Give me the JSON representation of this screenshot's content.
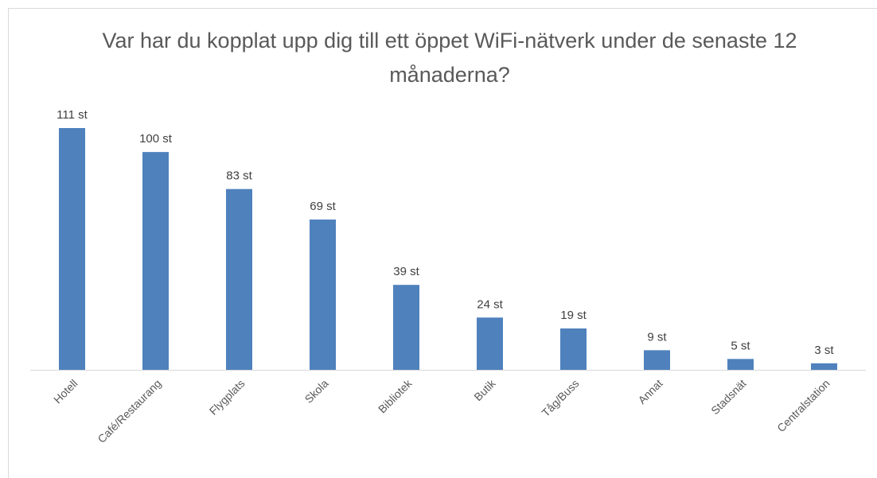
{
  "chart_data": {
    "type": "bar",
    "title": "Var har du kopplat upp dig till ett öppet WiFi-nätverk under de senaste 12 månaderna?",
    "categories": [
      "Hotell",
      "Café/Restaurang",
      "Flygplats",
      "Skola",
      "Bibliotek",
      "Butik",
      "Tåg/Buss",
      "Annat",
      "Stadsnät",
      "Centralstation"
    ],
    "values": [
      111,
      100,
      83,
      69,
      39,
      24,
      19,
      9,
      5,
      3
    ],
    "value_labels": [
      "111 st",
      "100 st",
      "83 st",
      "69 st",
      "39 st",
      "24 st",
      "19 st",
      "9 st",
      "5 st",
      "3 st"
    ],
    "color": "#4f81bd"
  }
}
